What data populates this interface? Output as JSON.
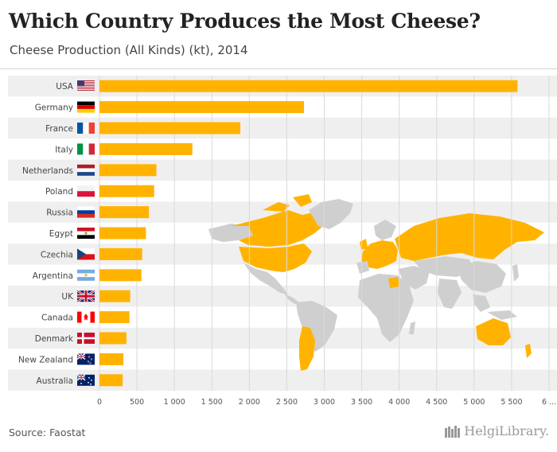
{
  "title": "Which Country Produces the Most Cheese?",
  "subtitle": "Cheese Production (All Kinds) (kt), 2014",
  "source": "Source: Faostat",
  "brand": "HelgiLibrary.",
  "colors": {
    "bar": "#ffb300",
    "stripe": "#efefef",
    "grid": "#d9d9d9",
    "text": "#444444",
    "map_highlight": "#ffb300",
    "map_other": "#cfcfcf"
  },
  "chart_data": {
    "type": "bar",
    "orientation": "horizontal",
    "categories": [
      "USA",
      "Germany",
      "France",
      "Italy",
      "Netherlands",
      "Poland",
      "Russia",
      "Egypt",
      "Czechia",
      "Argentina",
      "UK",
      "Canada",
      "Denmark",
      "New Zealand",
      "Australia"
    ],
    "flags": [
      "us-flag-icon",
      "germany-flag-icon",
      "france-flag-icon",
      "italy-flag-icon",
      "netherlands-flag-icon",
      "poland-flag-icon",
      "russia-flag-icon",
      "egypt-flag-icon",
      "czechia-flag-icon",
      "argentina-flag-icon",
      "uk-flag-icon",
      "canada-flag-icon",
      "denmark-flag-icon",
      "new-zealand-flag-icon",
      "australia-flag-icon"
    ],
    "values": [
      5580,
      2730,
      1880,
      1240,
      760,
      730,
      660,
      620,
      570,
      560,
      410,
      400,
      360,
      320,
      310
    ],
    "xlim": [
      0,
      6000
    ],
    "xticks": [
      "0",
      "500",
      "1 000",
      "1 500",
      "2 000",
      "2 500",
      "3 000",
      "3 500",
      "4 000",
      "4 500",
      "5 000",
      "5 500",
      "6 ..."
    ],
    "tick_values": [
      0,
      500,
      1000,
      1500,
      2000,
      2500,
      3000,
      3500,
      4000,
      4500,
      5000,
      5500,
      6000
    ],
    "grid": true,
    "background": "world-map-icon"
  }
}
